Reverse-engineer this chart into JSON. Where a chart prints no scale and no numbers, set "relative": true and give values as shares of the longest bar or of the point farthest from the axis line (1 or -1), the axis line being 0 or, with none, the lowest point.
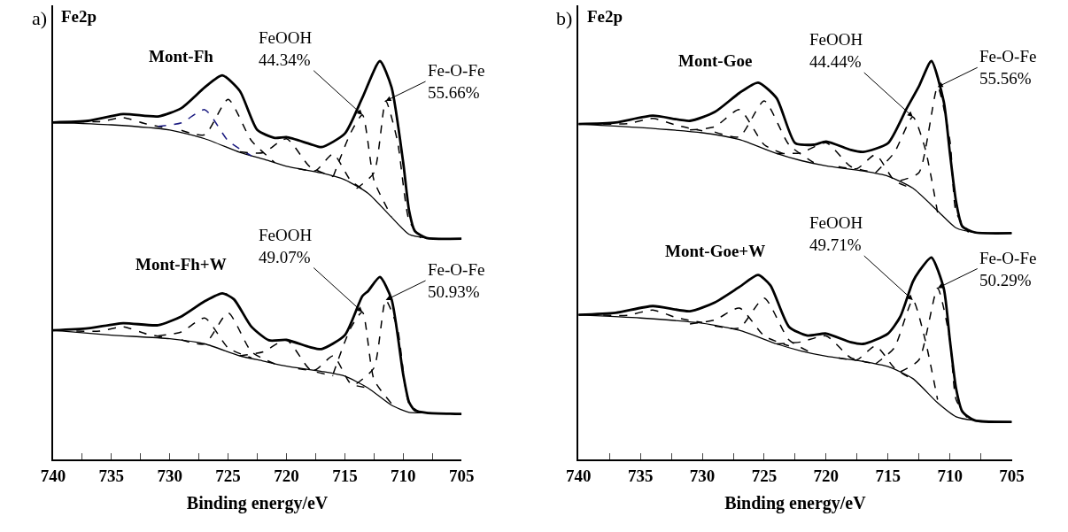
{
  "chart_data": [
    {
      "type": "line",
      "title": "a)",
      "subtitle": "Fe2p",
      "xlabel": "Binding energy/eV",
      "relative": true,
      "marker": "none",
      "tick_labels": "x",
      "xlim": [
        740,
        705
      ],
      "xticks": [
        740,
        {
          "value": 737.5,
          "label": null
        },
        735,
        {
          "value": 732.5,
          "label": null
        },
        730,
        {
          "value": 727.5,
          "label": null
        },
        725,
        {
          "value": 722.5,
          "label": null
        },
        720,
        {
          "value": 717.5,
          "label": null
        },
        715,
        {
          "value": 712.5,
          "label": null
        },
        710,
        {
          "value": 707.5,
          "label": null
        },
        705
      ],
      "annotations": [
        {
          "text": "FeOOH\n44.34%",
          "x": 713.5,
          "y": 0.865
        },
        {
          "text": "Fe-O-Fe\n55.66%",
          "x": 711.5,
          "y": 0.9
        },
        {
          "text": "FeOOH\n49.07%",
          "x": 713.5,
          "y": 0.37
        },
        {
          "text": "Fe-O-Fe\n50.93%",
          "x": 711.5,
          "y": 0.4
        }
      ],
      "series": [
        {
          "name": "Mont-Fh",
          "color": "#000000",
          "line_style": "solid",
          "x": [
            740,
            737,
            734,
            731,
            729,
            727,
            725.5,
            724,
            722.5,
            721,
            720,
            718,
            717,
            715,
            713.5,
            712,
            711,
            710,
            709.5,
            709,
            708,
            705
          ],
          "values": [
            0.846,
            0.85,
            0.867,
            0.861,
            0.882,
            0.934,
            0.964,
            0.925,
            0.827,
            0.807,
            0.809,
            0.792,
            0.784,
            0.818,
            0.908,
            1.0,
            0.934,
            0.745,
            0.625,
            0.573,
            0.556,
            0.554
          ]
        },
        {
          "color": "#000000",
          "line_style": "solid",
          "x": [
            740,
            735,
            730,
            727,
            724,
            722,
            720,
            717,
            715,
            713,
            711,
            709.5,
            708,
            705
          ],
          "values": [
            0.846,
            0.84,
            0.827,
            0.805,
            0.771,
            0.754,
            0.736,
            0.719,
            0.702,
            0.668,
            0.608,
            0.565,
            0.556,
            0.554
          ]
        },
        {
          "color": "#000000",
          "line_style": "dashed",
          "x": [
            738,
            736,
            734,
            732,
            730
          ],
          "values": [
            0.848,
            0.848,
            0.858,
            0.842,
            0.83
          ]
        },
        {
          "color": "#1a1a80",
          "line_style": "dashed",
          "x": [
            731,
            729,
            727,
            725,
            723
          ],
          "values": [
            0.836,
            0.845,
            0.878,
            0.8,
            0.762
          ]
        },
        {
          "color": "#000000",
          "line_style": "dashed",
          "x": [
            729,
            727,
            725,
            723,
            721
          ],
          "values": [
            0.826,
            0.815,
            0.904,
            0.8,
            0.745
          ]
        },
        {
          "color": "#000000",
          "line_style": "dashed",
          "x": [
            724,
            722,
            720,
            718,
            716
          ],
          "values": [
            0.772,
            0.77,
            0.805,
            0.735,
            0.71
          ]
        },
        {
          "color": "#000000",
          "line_style": "dashed",
          "x": [
            719,
            717.5,
            716,
            714.5,
            713
          ],
          "values": [
            0.73,
            0.725,
            0.767,
            0.7,
            0.67
          ]
        },
        {
          "color": "#000000",
          "line_style": "dashed",
          "x": [
            716,
            714.5,
            713.5,
            712.5,
            711
          ],
          "values": [
            0.71,
            0.82,
            0.865,
            0.7,
            0.61
          ]
        },
        {
          "color": "#000000",
          "line_style": "dashed",
          "x": [
            714,
            712.5,
            711.5,
            710.5,
            709.5,
            708.5
          ],
          "values": [
            0.68,
            0.72,
            0.9,
            0.8,
            0.6,
            0.556
          ]
        },
        {
          "name": "Mont-Fh+W",
          "color": "#000000",
          "line_style": "solid",
          "x": [
            740,
            737,
            734,
            731,
            729,
            727,
            725.5,
            724.5,
            723,
            721.5,
            720,
            718,
            717,
            715,
            713.5,
            713,
            712,
            711,
            710,
            709.5,
            709,
            708,
            705
          ],
          "values": [
            0.324,
            0.329,
            0.342,
            0.337,
            0.359,
            0.397,
            0.417,
            0.402,
            0.333,
            0.299,
            0.3,
            0.282,
            0.277,
            0.312,
            0.41,
            0.423,
            0.458,
            0.402,
            0.213,
            0.144,
            0.123,
            0.117,
            0.114
          ]
        },
        {
          "color": "#000000",
          "line_style": "solid",
          "x": [
            740,
            735,
            730,
            727,
            724,
            722,
            720,
            717,
            715,
            713,
            711,
            709.5,
            708,
            705
          ],
          "values": [
            0.324,
            0.312,
            0.303,
            0.29,
            0.26,
            0.247,
            0.234,
            0.221,
            0.209,
            0.179,
            0.136,
            0.118,
            0.117,
            0.114
          ]
        },
        {
          "color": "#000000",
          "line_style": "dashed",
          "x": [
            738,
            736,
            734,
            732,
            730
          ],
          "values": [
            0.322,
            0.322,
            0.333,
            0.315,
            0.304
          ]
        },
        {
          "color": "#000000",
          "line_style": "dashed",
          "x": [
            731,
            729,
            727,
            725,
            723
          ],
          "values": [
            0.31,
            0.32,
            0.355,
            0.28,
            0.255
          ]
        },
        {
          "color": "#000000",
          "line_style": "dashed",
          "x": [
            729,
            727,
            725,
            723,
            721
          ],
          "values": [
            0.3,
            0.29,
            0.368,
            0.27,
            0.24
          ]
        },
        {
          "color": "#000000",
          "line_style": "dashed",
          "x": [
            724,
            722,
            720,
            718,
            716
          ],
          "values": [
            0.26,
            0.27,
            0.3,
            0.226,
            0.21
          ]
        },
        {
          "color": "#000000",
          "line_style": "dashed",
          "x": [
            719,
            717.5,
            716,
            714.5,
            713
          ],
          "values": [
            0.228,
            0.225,
            0.26,
            0.19,
            0.18
          ]
        },
        {
          "color": "#000000",
          "line_style": "dashed",
          "x": [
            716,
            714.5,
            713.5,
            712.5,
            711
          ],
          "values": [
            0.215,
            0.33,
            0.37,
            0.2,
            0.14
          ]
        },
        {
          "color": "#000000",
          "line_style": "dashed",
          "x": [
            714,
            712.5,
            711.5,
            710.5,
            709.5,
            708.5
          ],
          "values": [
            0.19,
            0.23,
            0.4,
            0.33,
            0.14,
            0.117
          ]
        }
      ]
    },
    {
      "type": "line",
      "title": "b)",
      "subtitle": "Fe2p",
      "xlabel": "Binding energy/eV",
      "relative": true,
      "marker": "none",
      "tick_labels": "x",
      "xlim": [
        740,
        705
      ],
      "xticks": [
        740,
        {
          "value": 737.5,
          "label": null
        },
        735,
        {
          "value": 732.5,
          "label": null
        },
        730,
        {
          "value": 727.5,
          "label": null
        },
        725,
        {
          "value": 722.5,
          "label": null
        },
        720,
        {
          "value": 717.5,
          "label": null
        },
        715,
        {
          "value": 712.5,
          "label": null
        },
        710,
        {
          "value": 707.5,
          "label": null
        },
        705
      ],
      "annotations": [
        {
          "text": "FeOOH\n44.44%",
          "x": 713,
          "y": 0.86
        },
        {
          "text": "Fe-O-Fe\n55.56%",
          "x": 711,
          "y": 0.935
        },
        {
          "text": "FeOOH\n49.71%",
          "x": 713,
          "y": 0.4
        },
        {
          "text": "Fe-O-Fe\n50.29%",
          "x": 711,
          "y": 0.43
        }
      ],
      "series": [
        {
          "name": "Mont-Goe",
          "color": "#000000",
          "line_style": "solid",
          "x": [
            740,
            737,
            734,
            731,
            729,
            727,
            725.5,
            724,
            722.5,
            721,
            720,
            718,
            717,
            715,
            713.5,
            712.5,
            711.5,
            710.5,
            710,
            709.5,
            709,
            708,
            705
          ],
          "values": [
            0.842,
            0.846,
            0.863,
            0.85,
            0.872,
            0.92,
            0.946,
            0.907,
            0.794,
            0.79,
            0.798,
            0.777,
            0.772,
            0.794,
            0.881,
            0.937,
            1.0,
            0.898,
            0.768,
            0.646,
            0.585,
            0.57,
            0.568
          ]
        },
        {
          "color": "#000000",
          "line_style": "solid",
          "x": [
            740,
            735,
            730,
            727,
            724,
            722,
            720,
            717,
            715,
            713,
            711,
            709.5,
            708,
            705
          ],
          "values": [
            0.842,
            0.833,
            0.82,
            0.803,
            0.768,
            0.75,
            0.737,
            0.724,
            0.711,
            0.681,
            0.624,
            0.581,
            0.57,
            0.568
          ]
        },
        {
          "color": "#000000",
          "line_style": "dashed",
          "x": [
            738,
            736,
            734,
            732,
            730
          ],
          "values": [
            0.842,
            0.843,
            0.856,
            0.838,
            0.825
          ]
        },
        {
          "color": "#000000",
          "line_style": "dashed",
          "x": [
            731,
            729,
            727,
            725,
            723
          ],
          "values": [
            0.827,
            0.835,
            0.878,
            0.79,
            0.762
          ]
        },
        {
          "color": "#000000",
          "line_style": "dashed",
          "x": [
            729,
            727,
            725,
            723,
            721
          ],
          "values": [
            0.822,
            0.81,
            0.9,
            0.79,
            0.745
          ]
        },
        {
          "color": "#000000",
          "line_style": "dashed",
          "x": [
            724,
            722,
            720,
            718,
            716
          ],
          "values": [
            0.768,
            0.77,
            0.795,
            0.735,
            0.72
          ]
        },
        {
          "color": "#000000",
          "line_style": "dashed",
          "x": [
            719,
            717.5,
            716,
            714.5,
            713
          ],
          "values": [
            0.735,
            0.73,
            0.765,
            0.7,
            0.68
          ]
        },
        {
          "color": "#000000",
          "line_style": "dashed",
          "x": [
            716,
            714.5,
            713,
            712,
            711
          ],
          "values": [
            0.72,
            0.77,
            0.86,
            0.78,
            0.62
          ]
        },
        {
          "color": "#000000",
          "line_style": "dashed",
          "x": [
            714,
            712.5,
            711,
            710,
            709.5,
            708.5
          ],
          "values": [
            0.7,
            0.72,
            0.935,
            0.8,
            0.62,
            0.57
          ]
        },
        {
          "name": "Mont-Goe+W",
          "color": "#000000",
          "line_style": "solid",
          "x": [
            740,
            737,
            734,
            731,
            729,
            727,
            725.5,
            724.5,
            723,
            721.5,
            720,
            718,
            717,
            715,
            714,
            713,
            712.5,
            711.5,
            710.5,
            710,
            709.5,
            709,
            708,
            705
          ],
          "values": [
            0.363,
            0.368,
            0.385,
            0.372,
            0.394,
            0.433,
            0.463,
            0.437,
            0.333,
            0.311,
            0.316,
            0.294,
            0.29,
            0.316,
            0.359,
            0.446,
            0.472,
            0.507,
            0.429,
            0.298,
            0.177,
            0.12,
            0.098,
            0.094
          ]
        },
        {
          "color": "#000000",
          "line_style": "solid",
          "x": [
            740,
            735,
            730,
            727,
            724,
            722,
            720,
            717,
            715,
            713,
            711,
            709.5,
            708,
            705
          ],
          "values": [
            0.363,
            0.355,
            0.342,
            0.324,
            0.29,
            0.272,
            0.259,
            0.246,
            0.233,
            0.203,
            0.142,
            0.107,
            0.098,
            0.094
          ]
        },
        {
          "color": "#000000",
          "line_style": "dashed",
          "x": [
            738,
            736,
            734,
            732,
            730
          ],
          "values": [
            0.362,
            0.362,
            0.375,
            0.355,
            0.344
          ]
        },
        {
          "color": "#000000",
          "line_style": "dashed",
          "x": [
            731,
            729,
            727,
            725,
            723
          ],
          "values": [
            0.34,
            0.35,
            0.38,
            0.31,
            0.285
          ]
        },
        {
          "color": "#000000",
          "line_style": "dashed",
          "x": [
            729,
            727,
            725,
            723,
            721
          ],
          "values": [
            0.335,
            0.33,
            0.405,
            0.3,
            0.265
          ]
        },
        {
          "color": "#000000",
          "line_style": "dashed",
          "x": [
            724,
            722,
            720,
            718,
            716
          ],
          "values": [
            0.29,
            0.295,
            0.31,
            0.255,
            0.24
          ]
        },
        {
          "color": "#000000",
          "line_style": "dashed",
          "x": [
            719,
            717.5,
            716,
            714.5,
            713
          ],
          "values": [
            0.255,
            0.25,
            0.285,
            0.23,
            0.2
          ]
        },
        {
          "color": "#000000",
          "line_style": "dashed",
          "x": [
            716,
            714.5,
            713,
            712,
            711
          ],
          "values": [
            0.24,
            0.28,
            0.4,
            0.3,
            0.15
          ]
        },
        {
          "color": "#000000",
          "line_style": "dashed",
          "x": [
            714,
            712.5,
            711,
            710,
            709.5,
            708.5
          ],
          "values": [
            0.22,
            0.25,
            0.43,
            0.3,
            0.15,
            0.1
          ]
        }
      ]
    }
  ]
}
